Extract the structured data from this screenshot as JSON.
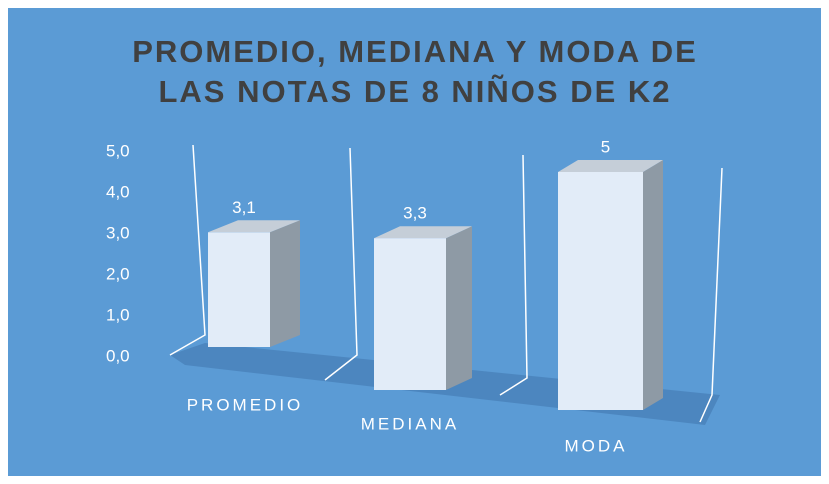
{
  "chart_data": {
    "type": "bar3d",
    "title": "PROMEDIO, MEDIANA Y MODA DE LAS NOTAS DE 8 NIÑOS DE K2",
    "categories": [
      "PROMEDIO",
      "MEDIANA",
      "MODA"
    ],
    "values": [
      3.1,
      3.3,
      5
    ],
    "value_labels": [
      "3,1",
      "3,3",
      "5"
    ],
    "ylim": [
      0,
      5
    ],
    "yticks": [
      {
        "value": 0,
        "label": "0,0"
      },
      {
        "value": 1,
        "label": "1,0"
      },
      {
        "value": 2,
        "label": "2,0"
      },
      {
        "value": 3,
        "label": "3,0"
      },
      {
        "value": 4,
        "label": "4,0"
      },
      {
        "value": 5,
        "label": "5,0"
      }
    ],
    "color": "#e2ecf8"
  }
}
